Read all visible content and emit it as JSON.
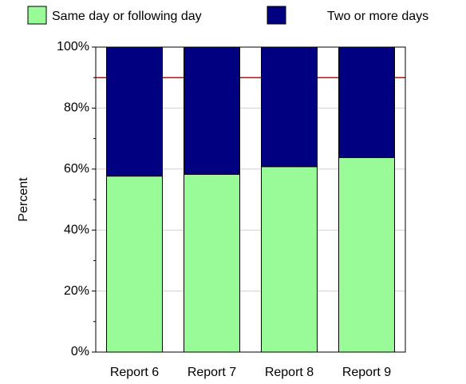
{
  "chart_data": {
    "type": "stacked-bar",
    "categories": [
      "Report 6",
      "Report 7",
      "Report 8",
      "Report 9"
    ],
    "series": [
      {
        "name": "Same day or following day",
        "color": "#98fb98",
        "values": [
          57.7,
          58.3,
          60.8,
          63.8
        ]
      },
      {
        "name": "Two or more days",
        "color": "#000080",
        "values": [
          42.3,
          41.7,
          39.2,
          36.2
        ]
      }
    ],
    "ylabel": "Percent",
    "ylim": [
      0,
      100
    ],
    "yticks": [
      {
        "value": 0,
        "label": "0%"
      },
      {
        "value": 20,
        "label": "20%"
      },
      {
        "value": 40,
        "label": "40%"
      },
      {
        "value": 60,
        "label": "60%"
      },
      {
        "value": 80,
        "label": "80%"
      },
      {
        "value": 100,
        "label": "100%"
      }
    ],
    "minor_yticks": [
      10,
      30,
      50,
      70,
      90
    ],
    "grid": true,
    "reference_line": {
      "value": 90,
      "color": "#e00000"
    },
    "legend": "top"
  }
}
